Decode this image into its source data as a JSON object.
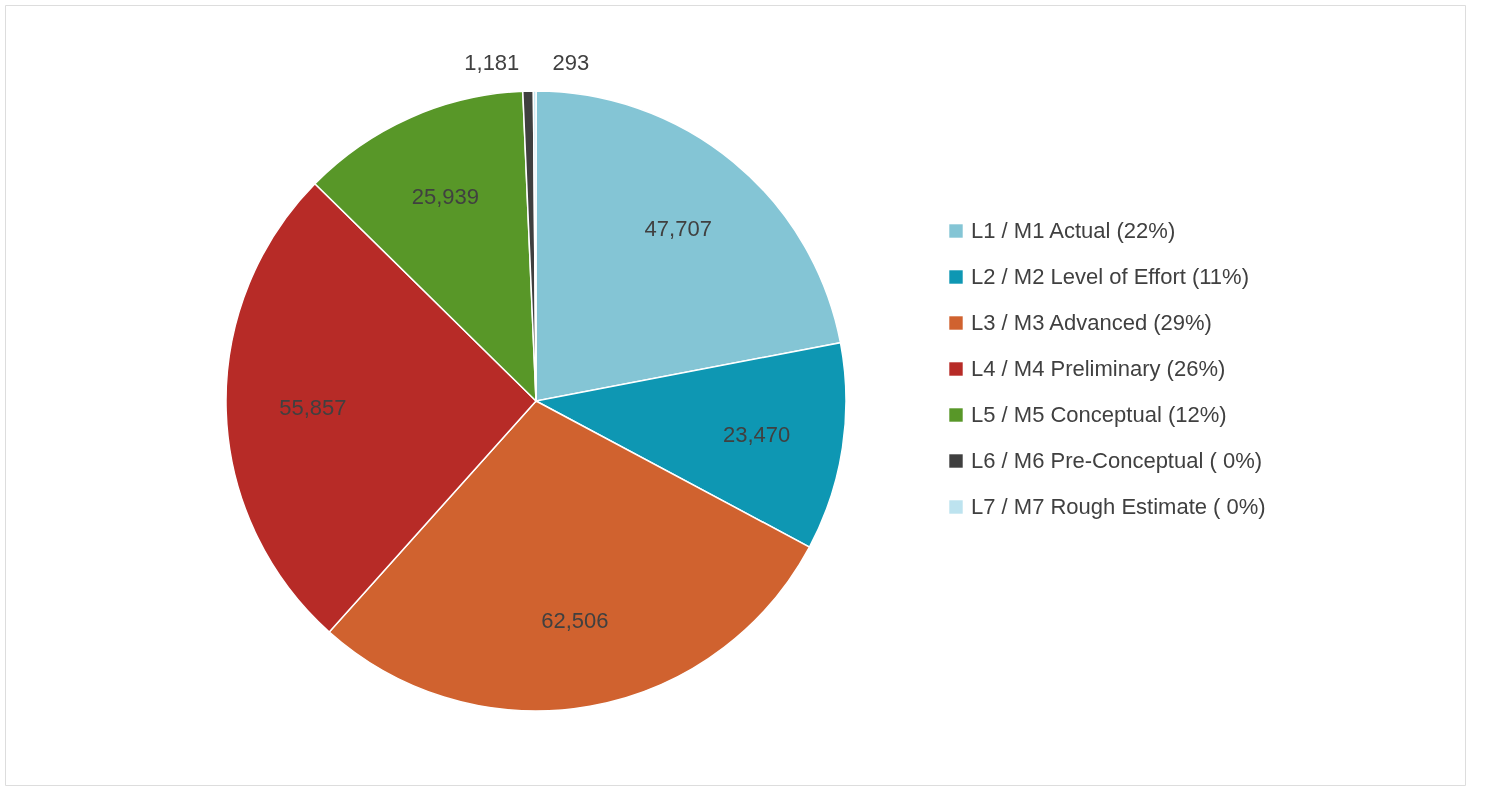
{
  "chart_data": {
    "type": "pie",
    "categories": [
      "L1 / M1 Actual (22%)",
      "L2 / M2 Level of Effort (11%)",
      "L3 / M3  Advanced (29%)",
      "L4 / M4 Preliminary (26%)",
      "L5 / M5 Conceptual (12%)",
      "L6 / M6 Pre-Conceptual ( 0%)",
      "L7 / M7 Rough Estimate ( 0%)"
    ],
    "values": [
      47707,
      23470,
      62506,
      55857,
      25939,
      1181,
      293
    ],
    "colors": [
      "#84c5d5",
      "#0e97b3",
      "#d0622f",
      "#b72b27",
      "#589728",
      "#3f3f3f",
      "#bde3ef"
    ],
    "value_labels": [
      "47,707",
      "23,470",
      "62,506",
      "55,857",
      "25,939",
      "1,181",
      "293"
    ],
    "legend": "right"
  }
}
